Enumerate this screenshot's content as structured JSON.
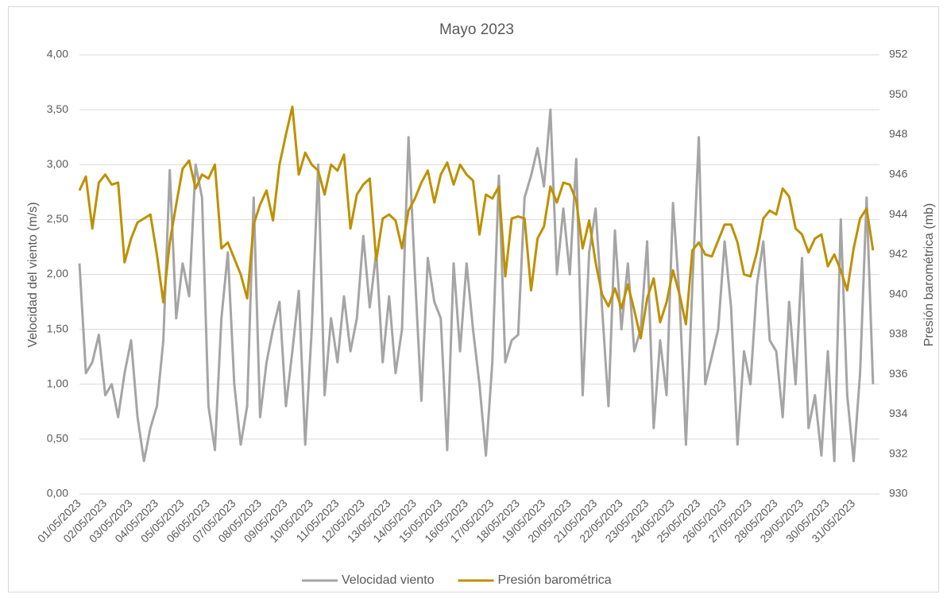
{
  "chart_data": {
    "type": "line",
    "title": "Mayo 2023",
    "y_label": "Velocidad del viento (m/s)",
    "y2_label": "Presión barométrica (mb)",
    "categories": [
      "01/05/2023",
      null,
      null,
      null,
      "02/05/2023",
      null,
      null,
      null,
      "03/05/2023",
      null,
      null,
      null,
      "04/05/2023",
      null,
      null,
      null,
      "05/05/2023",
      null,
      null,
      null,
      "06/05/2023",
      null,
      null,
      null,
      "07/05/2023",
      null,
      null,
      null,
      "08/05/2023",
      null,
      null,
      null,
      "09/05/2023",
      null,
      null,
      null,
      "10/05/2023",
      null,
      null,
      null,
      "11/05/2023",
      null,
      null,
      null,
      "12/05/2023",
      null,
      null,
      null,
      "13/05/2023",
      null,
      null,
      null,
      "14/05/2023",
      null,
      null,
      null,
      "15/05/2023",
      null,
      null,
      null,
      "16/05/2023",
      null,
      null,
      null,
      "17/05/2023",
      null,
      null,
      null,
      "18/05/2023",
      null,
      null,
      null,
      "19/05/2023",
      null,
      null,
      null,
      "20/05/2023",
      null,
      null,
      null,
      "21/05/2023",
      null,
      null,
      null,
      "22/05/2023",
      null,
      null,
      null,
      "23/05/2023",
      null,
      null,
      null,
      "24/05/2023",
      null,
      null,
      null,
      "25/05/2023",
      null,
      null,
      null,
      "26/05/2023",
      null,
      null,
      null,
      "27/05/2023",
      null,
      null,
      null,
      "28/05/2023",
      null,
      null,
      null,
      "29/05/2023",
      null,
      null,
      null,
      "30/05/2023",
      null,
      null,
      null,
      "31/05/2023",
      null,
      null,
      null
    ],
    "series": [
      {
        "name": "Velocidad viento",
        "color": "#a5a5a5",
        "axis": "y",
        "values": [
          2.1,
          1.1,
          1.2,
          1.45,
          0.9,
          1.0,
          0.7,
          1.1,
          1.4,
          0.7,
          0.3,
          0.6,
          0.8,
          1.4,
          2.95,
          1.6,
          2.1,
          1.8,
          3.0,
          2.7,
          0.8,
          0.4,
          1.6,
          2.2,
          1.0,
          0.45,
          0.8,
          2.7,
          0.7,
          1.2,
          1.5,
          1.75,
          0.8,
          1.3,
          1.85,
          0.45,
          1.5,
          3.0,
          0.9,
          1.6,
          1.2,
          1.8,
          1.3,
          1.6,
          2.35,
          1.7,
          2.2,
          1.2,
          1.8,
          1.1,
          1.5,
          3.25,
          2.0,
          0.85,
          2.15,
          1.75,
          1.6,
          0.4,
          2.1,
          1.3,
          2.1,
          1.5,
          1.0,
          0.35,
          1.2,
          2.9,
          1.2,
          1.4,
          1.45,
          2.7,
          2.9,
          3.15,
          2.8,
          3.5,
          2.0,
          2.6,
          2.0,
          3.05,
          0.9,
          2.2,
          2.6,
          1.7,
          0.8,
          2.4,
          1.5,
          2.1,
          1.3,
          1.5,
          2.3,
          0.6,
          1.4,
          0.9,
          2.65,
          1.8,
          0.45,
          1.9,
          3.25,
          1.0,
          1.25,
          1.5,
          2.3,
          1.7,
          0.45,
          1.3,
          1.0,
          1.9,
          2.3,
          1.4,
          1.3,
          0.7,
          1.75,
          1.0,
          2.15,
          0.6,
          0.9,
          0.35,
          1.3,
          0.3,
          2.5,
          0.9,
          0.3,
          1.1,
          2.7,
          1.0
        ]
      },
      {
        "name": "Presión barométrica",
        "color": "#bf9000",
        "axis": "y2",
        "values": [
          945.2,
          945.9,
          943.3,
          945.6,
          946.0,
          945.5,
          945.6,
          941.6,
          942.8,
          943.6,
          943.8,
          944.0,
          942.0,
          939.6,
          942.6,
          944.5,
          946.3,
          946.7,
          945.3,
          946.0,
          945.8,
          946.5,
          942.3,
          942.6,
          941.8,
          941.0,
          939.8,
          943.5,
          944.5,
          945.2,
          943.7,
          946.5,
          948.0,
          949.4,
          946.0,
          947.1,
          946.5,
          946.2,
          945.0,
          946.5,
          946.2,
          947.0,
          943.3,
          945.0,
          945.5,
          945.8,
          941.7,
          943.8,
          944.0,
          943.7,
          942.3,
          944.2,
          944.8,
          945.6,
          946.2,
          944.6,
          946.0,
          946.6,
          945.5,
          946.5,
          946.0,
          945.7,
          943.0,
          945.0,
          944.8,
          945.4,
          940.9,
          943.8,
          943.9,
          943.8,
          940.2,
          942.8,
          943.4,
          945.4,
          944.6,
          945.6,
          945.5,
          944.7,
          942.3,
          943.7,
          941.6,
          940.0,
          939.4,
          940.3,
          939.3,
          940.5,
          939.2,
          937.8,
          939.8,
          940.8,
          938.6,
          939.6,
          941.2,
          940.0,
          938.5,
          942.2,
          942.6,
          942.0,
          941.9,
          942.7,
          943.5,
          943.5,
          942.6,
          941.0,
          940.9,
          942.1,
          943.8,
          944.2,
          944.0,
          945.3,
          944.9,
          943.3,
          943.0,
          942.1,
          942.8,
          943.0,
          941.4,
          942.0,
          941.2,
          940.2,
          942.3,
          943.8,
          944.3,
          942.2
        ]
      }
    ],
    "ylim": [
      0,
      4
    ],
    "yticks": [
      {
        "value": 0,
        "label": "0,00"
      },
      {
        "value": 0.5,
        "label": "0,50"
      },
      {
        "value": 1,
        "label": "1,00"
      },
      {
        "value": 1.5,
        "label": "1,50"
      },
      {
        "value": 2,
        "label": "2,00"
      },
      {
        "value": 2.5,
        "label": "2,50"
      },
      {
        "value": 3,
        "label": "3,00"
      },
      {
        "value": 3.5,
        "label": "3,50"
      },
      {
        "value": 4,
        "label": "4,00"
      }
    ],
    "y2lim": [
      930,
      952
    ],
    "y2ticks": [
      930,
      932,
      934,
      936,
      938,
      940,
      942,
      944,
      946,
      948,
      950,
      952
    ],
    "grid": true,
    "legend": "bottom"
  }
}
